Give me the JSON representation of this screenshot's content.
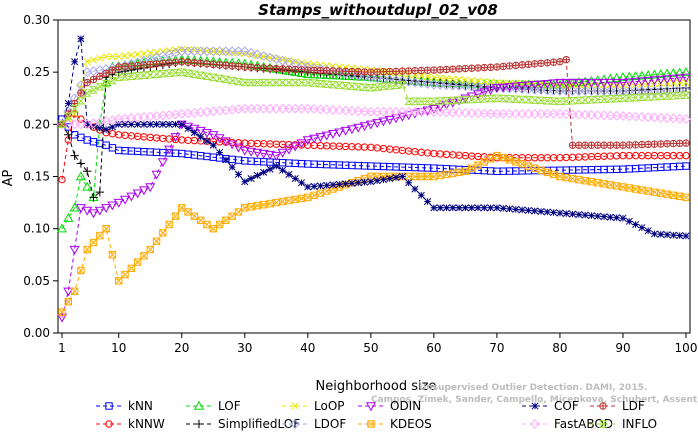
{
  "chart_data": {
    "type": "line",
    "title": "Stamps_withoutdupl_02_v08",
    "xlabel": "Neighborhood size",
    "ylabel": "AP",
    "xlim": [
      1,
      100
    ],
    "ylim": [
      0.0,
      0.3
    ],
    "xticks": [
      1,
      10,
      20,
      30,
      40,
      50,
      60,
      70,
      80,
      90,
      100
    ],
    "yticks": [
      "0.00",
      "0.05",
      "0.10",
      "0.15",
      "0.20",
      "0.25",
      "0.30"
    ],
    "grid": false,
    "legend_position": "bottom",
    "watermark_line1": "Unsupervised Outlier Detection. DAMI, 2015.",
    "watermark_line2": "Campos, Zimek, Sander, Campello, Micenkova, Schubert, Assent, Houle",
    "series": [
      {
        "name": "kNN",
        "color": "#0000ff",
        "marker": "square",
        "anchors": [
          [
            1,
            0.205
          ],
          [
            3,
            0.19
          ],
          [
            5,
            0.185
          ],
          [
            8,
            0.18
          ],
          [
            10,
            0.175
          ],
          [
            20,
            0.172
          ],
          [
            30,
            0.165
          ],
          [
            40,
            0.162
          ],
          [
            50,
            0.16
          ],
          [
            60,
            0.158
          ],
          [
            70,
            0.155
          ],
          [
            80,
            0.156
          ],
          [
            90,
            0.157
          ],
          [
            100,
            0.16
          ]
        ]
      },
      {
        "name": "kNNW",
        "color": "#ff0000",
        "marker": "circle",
        "anchors": [
          [
            1,
            0.147
          ],
          [
            2,
            0.185
          ],
          [
            3,
            0.21
          ],
          [
            5,
            0.2
          ],
          [
            8,
            0.192
          ],
          [
            10,
            0.19
          ],
          [
            20,
            0.185
          ],
          [
            30,
            0.182
          ],
          [
            40,
            0.18
          ],
          [
            50,
            0.178
          ],
          [
            60,
            0.172
          ],
          [
            70,
            0.168
          ],
          [
            80,
            0.168
          ],
          [
            90,
            0.17
          ],
          [
            100,
            0.17
          ]
        ]
      },
      {
        "name": "LOF",
        "color": "#00dd00",
        "marker": "triangle-up",
        "anchors": [
          [
            1,
            0.1
          ],
          [
            3,
            0.12
          ],
          [
            4,
            0.15
          ],
          [
            5,
            0.14
          ],
          [
            6,
            0.13
          ],
          [
            7,
            0.2
          ],
          [
            8,
            0.24
          ],
          [
            9,
            0.255
          ],
          [
            15,
            0.26
          ],
          [
            20,
            0.262
          ],
          [
            30,
            0.258
          ],
          [
            40,
            0.248
          ],
          [
            50,
            0.245
          ],
          [
            60,
            0.24
          ],
          [
            70,
            0.238
          ],
          [
            80,
            0.238
          ],
          [
            90,
            0.245
          ],
          [
            100,
            0.25
          ]
        ]
      },
      {
        "name": "SimplifiedLOF",
        "color": "#000000",
        "marker": "plus",
        "anchors": [
          [
            1,
            0.2
          ],
          [
            2,
            0.19
          ],
          [
            3,
            0.17
          ],
          [
            5,
            0.155
          ],
          [
            6,
            0.13
          ],
          [
            7,
            0.135
          ],
          [
            8,
            0.245
          ],
          [
            10,
            0.25
          ],
          [
            20,
            0.26
          ],
          [
            30,
            0.255
          ],
          [
            40,
            0.25
          ],
          [
            50,
            0.245
          ],
          [
            60,
            0.24
          ],
          [
            70,
            0.235
          ],
          [
            80,
            0.232
          ],
          [
            90,
            0.232
          ],
          [
            100,
            0.235
          ]
        ]
      },
      {
        "name": "LoOP",
        "color": "#e6e600",
        "marker": "x",
        "anchors": [
          [
            1,
            0.2
          ],
          [
            3,
            0.21
          ],
          [
            5,
            0.26
          ],
          [
            8,
            0.265
          ],
          [
            10,
            0.265
          ],
          [
            20,
            0.272
          ],
          [
            30,
            0.268
          ],
          [
            40,
            0.258
          ],
          [
            50,
            0.252
          ],
          [
            60,
            0.245
          ],
          [
            70,
            0.24
          ],
          [
            80,
            0.238
          ],
          [
            90,
            0.238
          ],
          [
            100,
            0.24
          ]
        ]
      },
      {
        "name": "LDOF",
        "color": "#aaaaee",
        "marker": "diamond",
        "anchors": [
          [
            1,
            0.2
          ],
          [
            5,
            0.25
          ],
          [
            10,
            0.255
          ],
          [
            20,
            0.27
          ],
          [
            30,
            0.27
          ],
          [
            40,
            0.255
          ],
          [
            50,
            0.245
          ],
          [
            60,
            0.238
          ],
          [
            70,
            0.235
          ],
          [
            80,
            0.232
          ],
          [
            90,
            0.232
          ],
          [
            100,
            0.232
          ]
        ]
      },
      {
        "name": "ODIN",
        "color": "#aa00ee",
        "marker": "triangle-down",
        "anchors": [
          [
            1,
            0.015
          ],
          [
            2,
            0.04
          ],
          [
            3,
            0.08
          ],
          [
            4,
            0.12
          ],
          [
            6,
            0.115
          ],
          [
            8,
            0.12
          ],
          [
            10,
            0.125
          ],
          [
            15,
            0.14
          ],
          [
            20,
            0.2
          ],
          [
            25,
            0.19
          ],
          [
            30,
            0.175
          ],
          [
            35,
            0.17
          ],
          [
            40,
            0.185
          ],
          [
            50,
            0.2
          ],
          [
            60,
            0.215
          ],
          [
            70,
            0.235
          ],
          [
            80,
            0.24
          ],
          [
            90,
            0.24
          ],
          [
            100,
            0.245
          ]
        ]
      },
      {
        "name": "KDEOS",
        "color": "#ffaa00",
        "marker": "square-x",
        "anchors": [
          [
            1,
            0.02
          ],
          [
            3,
            0.04
          ],
          [
            5,
            0.08
          ],
          [
            8,
            0.1
          ],
          [
            10,
            0.05
          ],
          [
            15,
            0.08
          ],
          [
            20,
            0.12
          ],
          [
            25,
            0.1
          ],
          [
            30,
            0.12
          ],
          [
            40,
            0.13
          ],
          [
            50,
            0.15
          ],
          [
            60,
            0.15
          ],
          [
            65,
            0.155
          ],
          [
            70,
            0.17
          ],
          [
            75,
            0.16
          ],
          [
            80,
            0.15
          ],
          [
            90,
            0.14
          ],
          [
            100,
            0.13
          ]
        ]
      },
      {
        "name": "COF",
        "color": "#000080",
        "marker": "star",
        "anchors": [
          [
            1,
            0.2
          ],
          [
            2,
            0.22
          ],
          [
            3,
            0.26
          ],
          [
            4,
            0.282
          ],
          [
            5,
            0.2
          ],
          [
            8,
            0.195
          ],
          [
            10,
            0.2
          ],
          [
            15,
            0.2
          ],
          [
            20,
            0.2
          ],
          [
            25,
            0.18
          ],
          [
            30,
            0.145
          ],
          [
            35,
            0.16
          ],
          [
            40,
            0.14
          ],
          [
            50,
            0.145
          ],
          [
            55,
            0.15
          ],
          [
            60,
            0.12
          ],
          [
            70,
            0.12
          ],
          [
            80,
            0.115
          ],
          [
            90,
            0.11
          ],
          [
            95,
            0.095
          ],
          [
            100,
            0.093
          ]
        ]
      },
      {
        "name": "FastABOD",
        "color": "#ffaaff",
        "marker": "diamond",
        "anchors": [
          [
            1,
            0.2
          ],
          [
            5,
            0.2
          ],
          [
            10,
            0.205
          ],
          [
            20,
            0.21
          ],
          [
            30,
            0.215
          ],
          [
            40,
            0.215
          ],
          [
            50,
            0.212
          ],
          [
            60,
            0.212
          ],
          [
            70,
            0.21
          ],
          [
            80,
            0.21
          ],
          [
            90,
            0.208
          ],
          [
            100,
            0.205
          ]
        ]
      },
      {
        "name": "LDF",
        "color": "#bb3333",
        "marker": "circle-plus",
        "anchors": [
          [
            1,
            0.2
          ],
          [
            5,
            0.24
          ],
          [
            10,
            0.255
          ],
          [
            20,
            0.26
          ],
          [
            30,
            0.255
          ],
          [
            40,
            0.252
          ],
          [
            50,
            0.25
          ],
          [
            60,
            0.252
          ],
          [
            70,
            0.255
          ],
          [
            80,
            0.26
          ],
          [
            81,
            0.262
          ],
          [
            82,
            0.18
          ],
          [
            90,
            0.18
          ],
          [
            100,
            0.182
          ]
        ]
      },
      {
        "name": "INFLO",
        "color": "#99dd33",
        "marker": "hourglass",
        "anchors": [
          [
            1,
            0.2
          ],
          [
            5,
            0.23
          ],
          [
            10,
            0.245
          ],
          [
            20,
            0.25
          ],
          [
            30,
            0.24
          ],
          [
            40,
            0.24
          ],
          [
            50,
            0.235
          ],
          [
            55,
            0.238
          ],
          [
            56,
            0.222
          ],
          [
            60,
            0.222
          ],
          [
            70,
            0.225
          ],
          [
            80,
            0.222
          ],
          [
            90,
            0.225
          ],
          [
            100,
            0.228
          ]
        ]
      }
    ]
  }
}
